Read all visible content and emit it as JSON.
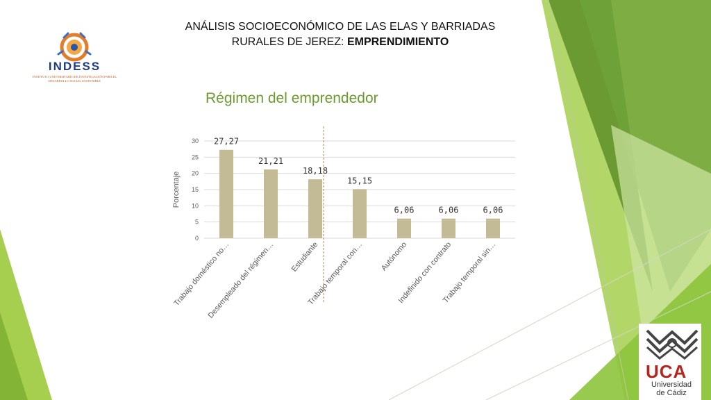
{
  "header": {
    "title_line1": "ANÁLISIS SOCIOECONÓMICO DE LAS ELAS Y BARRIADAS",
    "title_line2_prefix": "RURALES DE JEREZ: ",
    "title_line2_bold": "EMPRENDIMIENTO"
  },
  "logos": {
    "indess_name": "INDESS",
    "indess_subtitle": "INSTITUTO UNIVERSITARIO DE INVESTIGACIÓN PARA EL DESARROLLO SOCIAL SOSTENIBLE",
    "uca_name": "UCA",
    "uca_subtitle_1": "Universidad",
    "uca_subtitle_2": "de Cádiz"
  },
  "colors": {
    "bar": "#c3bb95",
    "title_green": "#6b9a2f",
    "deco_green_light": "#a6cf4f",
    "deco_green_dark": "#5e8f2a",
    "grid": "#d9d9d9",
    "text_gray": "#595959",
    "dashed_line": "#b08a5c"
  },
  "chart_data": {
    "type": "bar",
    "title": "Régimen del emprendedor",
    "ylabel": "Porcentaje",
    "xlabel": "",
    "ylim": [
      0,
      30
    ],
    "yticks": [
      0,
      5,
      10,
      15,
      20,
      25,
      30
    ],
    "grid": true,
    "categories": [
      "Trabajo doméstico no…",
      "Desempleado del régimen…",
      "Estudiante",
      "Trabajo temporal con…",
      "Autónomo",
      "Indefinido con contrato",
      "Trabajo temporal sin…"
    ],
    "values": [
      27.27,
      21.21,
      18.18,
      15.15,
      6.06,
      6.06,
      6.06
    ],
    "value_labels": [
      "27,27",
      "21,21",
      "18,18",
      "15,15",
      "6,06",
      "6,06",
      "6,06"
    ]
  }
}
